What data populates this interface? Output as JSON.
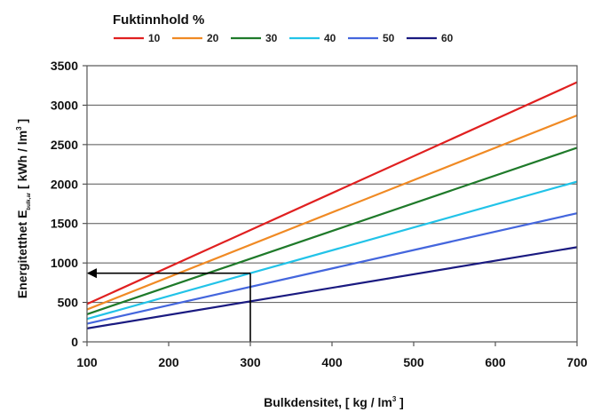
{
  "chart_data": {
    "type": "line",
    "legend": {
      "title": "Fuktinnhold %",
      "placement": "top"
    },
    "x": [
      100,
      700
    ],
    "series": [
      {
        "name": "10",
        "color": "#e02020",
        "values": [
          480,
          3290
        ]
      },
      {
        "name": "20",
        "color": "#f08a24",
        "values": [
          410,
          2870
        ]
      },
      {
        "name": "30",
        "color": "#1f7a2a",
        "values": [
          350,
          2460
        ]
      },
      {
        "name": "40",
        "color": "#22c3e8",
        "values": [
          290,
          2030
        ]
      },
      {
        "name": "50",
        "color": "#4466dd",
        "values": [
          230,
          1630
        ]
      },
      {
        "name": "60",
        "color": "#1a1a80",
        "values": [
          170,
          1200
        ]
      }
    ],
    "xlim": [
      100,
      700
    ],
    "ylim": [
      0,
      3500
    ],
    "xticks": [
      100,
      200,
      300,
      400,
      500,
      600,
      700
    ],
    "yticks": [
      0,
      500,
      1000,
      1500,
      2000,
      2500,
      3000,
      3500
    ],
    "grid": "horizontal",
    "xlabel": {
      "text": "Bulkdensitet, [ kg / lm",
      "sup": "3",
      "end": " ]"
    },
    "ylabel": {
      "pre": "Energitetthet E",
      "sub": "bulk,ar",
      "mid": " [ kWh / lm",
      "sup": "3",
      "end": " ]"
    },
    "annotation": {
      "x": 300,
      "y": 870,
      "style": "reading-arrows"
    }
  }
}
